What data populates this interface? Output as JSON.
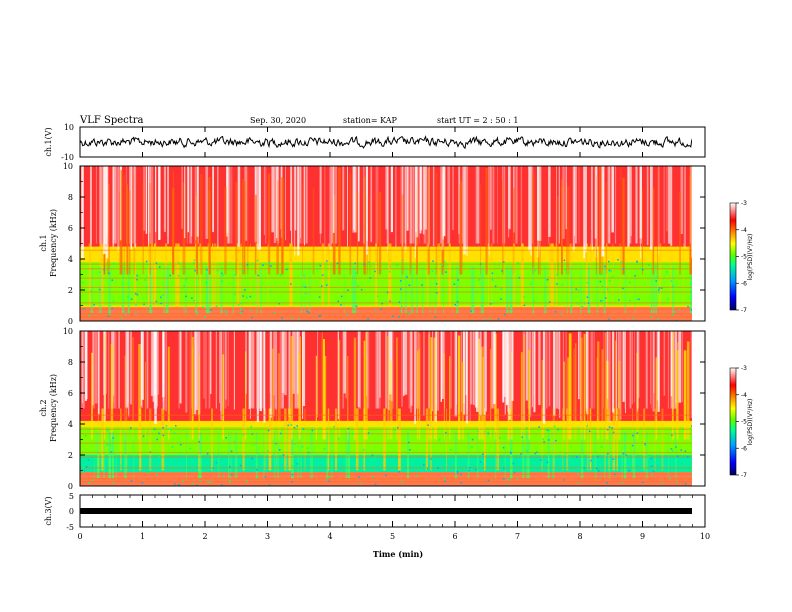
{
  "header": {
    "title": "VLF Spectra",
    "date": "Sep. 30, 2020",
    "station": "station= KAP",
    "start": "start UT =  2 : 50 : 1"
  },
  "chart_data": [
    {
      "type": "line",
      "name": "ch.1 waveform",
      "ylabel": "ch.1(V)",
      "ylim": [
        -10,
        10
      ],
      "yticks": [
        "10",
        "-10"
      ],
      "xlim": [
        0,
        10
      ],
      "note_x_extent": 9.8
    },
    {
      "type": "heatmap",
      "name": "ch.1 spectrogram",
      "ylabel_line1": "ch.1",
      "ylabel_line2": "Frequency (kHz)",
      "ylim": [
        0,
        10
      ],
      "yticks": [
        "0",
        "2",
        "4",
        "6",
        "8",
        "10"
      ],
      "xlim": [
        0,
        10
      ],
      "colorbar": {
        "label": "log(PSD)(V²/Hz)",
        "ticks": [
          "-3",
          "-4",
          "-5",
          "-6",
          "-7"
        ],
        "range": [
          -7,
          -3
        ]
      }
    },
    {
      "type": "heatmap",
      "name": "ch.2 spectrogram",
      "ylabel_line1": "ch.2",
      "ylabel_line2": "Frequency (kHz)",
      "ylim": [
        0,
        10
      ],
      "yticks": [
        "0",
        "2",
        "4",
        "6",
        "8",
        "10"
      ],
      "xlim": [
        0,
        10
      ],
      "colorbar": {
        "label": "log(PSD)(V²/Hz)",
        "ticks": [
          "-3",
          "-4",
          "-5",
          "-6",
          "-7"
        ],
        "range": [
          -7,
          -3
        ]
      }
    },
    {
      "type": "line",
      "name": "ch.3 waveform",
      "ylabel": "ch.3(V)",
      "ylim": [
        -5,
        5
      ],
      "yticks": [
        "5",
        "0",
        "-5"
      ],
      "xlim": [
        0,
        10
      ],
      "xlabel": "Time (min)",
      "xticks": [
        "0",
        "1",
        "2",
        "3",
        "4",
        "5",
        "6",
        "7",
        "8",
        "9",
        "10"
      ],
      "values_approx": -1
    }
  ],
  "colors": {
    "colormap": [
      "#000066",
      "#0000ff",
      "#00aaff",
      "#00ff80",
      "#80ff00",
      "#ffff00",
      "#ff8000",
      "#ff0000",
      "#ffffff"
    ]
  }
}
